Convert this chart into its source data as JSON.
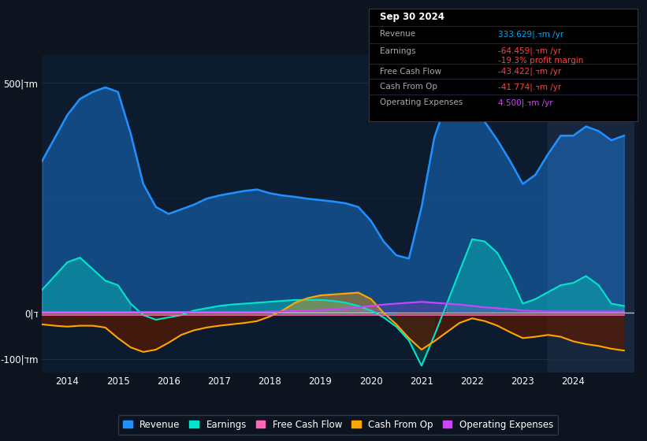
{
  "bg_color": "#0d1420",
  "plot_bg_color": "#0d1b2e",
  "title_box": {
    "date": "Sep 30 2024",
    "revenue_val": "333.629|.דm /yr",
    "earnings_val": "-64.459|.דm /yr",
    "margin_val": "-19.3% profit margin",
    "fcf_val": "-43.422|.דm /yr",
    "cfo_val": "-41.774|.דm /yr",
    "opex_val": "4.500|.דm /yr",
    "revenue_color": "#00aaff",
    "earnings_color": "#ff4444",
    "margin_color": "#ff4444",
    "fcf_color": "#ff4444",
    "cfo_color": "#ff4444",
    "opex_color": "#cc44ff"
  },
  "ylim": [
    -130,
    560
  ],
  "yticks": [
    -100,
    0,
    500
  ],
  "ytick_labels": [
    "-100|דm",
    "0|ד",
    "500|דm"
  ],
  "series": {
    "revenue": {
      "color": "#1e90ff",
      "fill_alpha": 0.4,
      "lw": 1.8
    },
    "earnings": {
      "color": "#00e5cc",
      "fill_alpha": 0.35,
      "lw": 1.5
    },
    "fcf": {
      "color": "#ff69b4",
      "lw": 1.2
    },
    "cfo": {
      "color": "#ffa500",
      "fill_alpha": 0.4,
      "lw": 1.5
    },
    "opex": {
      "color": "#cc44ff",
      "lw": 1.5
    }
  },
  "years": [
    2013.5,
    2013.75,
    2014.0,
    2014.25,
    2014.5,
    2014.75,
    2015.0,
    2015.25,
    2015.5,
    2015.75,
    2016.0,
    2016.25,
    2016.5,
    2016.75,
    2017.0,
    2017.25,
    2017.5,
    2017.75,
    2018.0,
    2018.25,
    2018.5,
    2018.75,
    2019.0,
    2019.25,
    2019.5,
    2019.75,
    2020.0,
    2020.25,
    2020.5,
    2020.75,
    2021.0,
    2021.25,
    2021.5,
    2021.75,
    2022.0,
    2022.25,
    2022.5,
    2022.75,
    2023.0,
    2023.25,
    2023.5,
    2023.75,
    2024.0,
    2024.25,
    2024.5,
    2024.75,
    2025.0
  ],
  "revenue": [
    330,
    380,
    430,
    465,
    480,
    490,
    480,
    390,
    280,
    230,
    215,
    225,
    235,
    248,
    255,
    260,
    265,
    268,
    260,
    255,
    252,
    248,
    245,
    242,
    238,
    230,
    200,
    155,
    125,
    118,
    230,
    380,
    460,
    470,
    440,
    415,
    375,
    330,
    280,
    300,
    345,
    385,
    385,
    405,
    395,
    375,
    385
  ],
  "earnings": [
    50,
    80,
    110,
    120,
    95,
    70,
    60,
    20,
    -5,
    -15,
    -10,
    -5,
    5,
    10,
    15,
    18,
    20,
    22,
    24,
    26,
    28,
    28,
    28,
    26,
    22,
    15,
    5,
    -10,
    -30,
    -60,
    -115,
    -50,
    20,
    90,
    160,
    155,
    130,
    80,
    20,
    30,
    45,
    60,
    65,
    80,
    60,
    20,
    15
  ],
  "fcf": [
    -5,
    -5,
    -5,
    -5,
    -5,
    -5,
    -5,
    -5,
    -5,
    -5,
    -5,
    -5,
    -5,
    -5,
    -5,
    -5,
    -5,
    -5,
    -5,
    -5,
    -5,
    -5,
    -5,
    -5,
    -5,
    -5,
    -5,
    -5,
    -5,
    -5,
    -5,
    -5,
    -5,
    -5,
    -5,
    -5,
    -5,
    -5,
    -5,
    -5,
    -5,
    -5,
    -5,
    -5,
    -5,
    -5,
    -5
  ],
  "cfo": [
    -25,
    -28,
    -30,
    -28,
    -28,
    -32,
    -55,
    -75,
    -85,
    -80,
    -65,
    -48,
    -38,
    -32,
    -28,
    -25,
    -22,
    -18,
    -8,
    5,
    22,
    32,
    38,
    40,
    42,
    44,
    30,
    0,
    -25,
    -55,
    -80,
    -62,
    -42,
    -22,
    -12,
    -18,
    -28,
    -42,
    -55,
    -52,
    -48,
    -52,
    -62,
    -68,
    -72,
    -78,
    -82
  ],
  "opex": [
    2,
    2,
    2,
    2,
    2,
    2,
    2,
    2,
    2,
    2,
    2,
    2,
    2,
    2,
    2,
    2,
    2,
    2,
    3,
    3,
    4,
    5,
    6,
    8,
    10,
    12,
    15,
    18,
    20,
    22,
    24,
    22,
    20,
    18,
    15,
    12,
    10,
    8,
    5,
    4,
    3,
    3,
    3,
    3,
    3,
    3,
    3
  ],
  "xlim": [
    2013.5,
    2025.2
  ],
  "xticks": [
    2014,
    2015,
    2016,
    2017,
    2018,
    2019,
    2020,
    2021,
    2022,
    2023,
    2024
  ],
  "xtick_labels": [
    "2014",
    "2015",
    "2016",
    "2017",
    "2018",
    "2019",
    "2020",
    "2021",
    "2022",
    "2023",
    "2024"
  ],
  "legend": [
    {
      "label": "Revenue",
      "color": "#1e90ff"
    },
    {
      "label": "Earnings",
      "color": "#00e5cc"
    },
    {
      "label": "Free Cash Flow",
      "color": "#ff69b4"
    },
    {
      "label": "Cash From Op",
      "color": "#ffa500"
    },
    {
      "label": "Operating Expenses",
      "color": "#cc44ff"
    }
  ],
  "shaded_region_start": 2023.5,
  "grid_color": "#1e2d40",
  "zero_line_color": "#cccccc"
}
